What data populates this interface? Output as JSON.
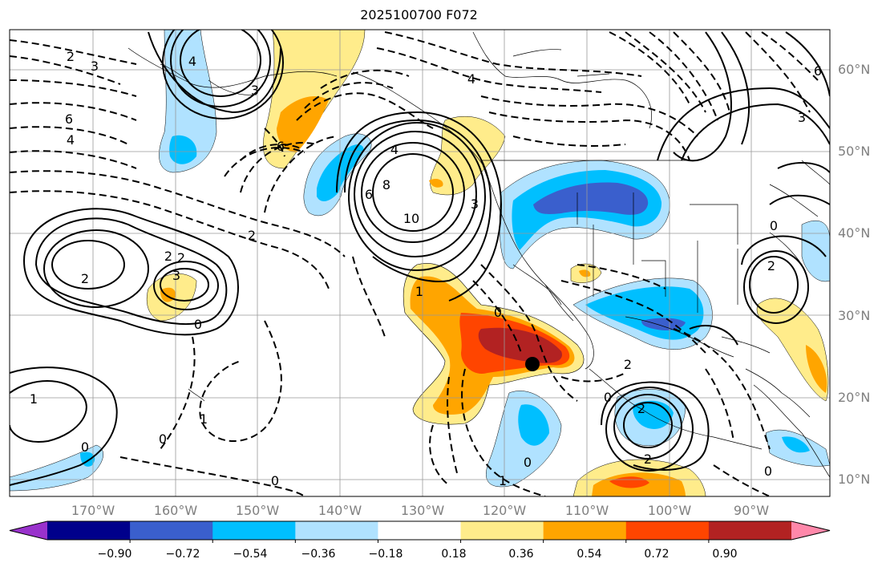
{
  "title": "2025100700 F072",
  "lat_labels": [
    "60°N",
    "50°N",
    "40°N",
    "30°N",
    "20°N",
    "10°N"
  ],
  "lon_labels": [
    "170°W",
    "160°W",
    "150°W",
    "140°W",
    "130°W",
    "120°W",
    "110°W",
    "100°W",
    "90°W"
  ],
  "colorbar": {
    "colors": [
      "#9932cc",
      "#00008b",
      "#3a5fcd",
      "#00bfff",
      "#b0e2ff",
      "#ffffff",
      "#ffec8b",
      "#ffa500",
      "#ff4500",
      "#b22222",
      "#ff88aa"
    ],
    "tick_labels": [
      "−0.90",
      "−0.72",
      "−0.54",
      "−0.36",
      "−0.18",
      "0.18",
      "0.36",
      "0.54",
      "0.72",
      "0.90"
    ]
  },
  "contour_labels": {
    "c1": "2",
    "c2": "3",
    "c3": "6",
    "c4": "4",
    "c5": "4",
    "c6": "6",
    "c7": "6",
    "c8": "8",
    "c9": "10",
    "c10": "4",
    "c11": "2",
    "c12": "2",
    "c13": "2",
    "c14": "3",
    "c15": "2",
    "c16": "0",
    "c17": "0",
    "c18": "1",
    "c19": "0",
    "c20": "1",
    "c21": "0",
    "c22": "0",
    "c23": "0",
    "c24": "1",
    "c25": "1",
    "c26": "2",
    "c27": "0",
    "c28": "2",
    "c29": "2",
    "c30": "3",
    "c31": "2",
    "c32": "0",
    "c33": "4",
    "c34": "6",
    "c35": "3",
    "c36": "0",
    "c37": "3"
  },
  "colors": {
    "frame": "#000000",
    "grid": "#999999",
    "label": "#7f7f7f"
  }
}
